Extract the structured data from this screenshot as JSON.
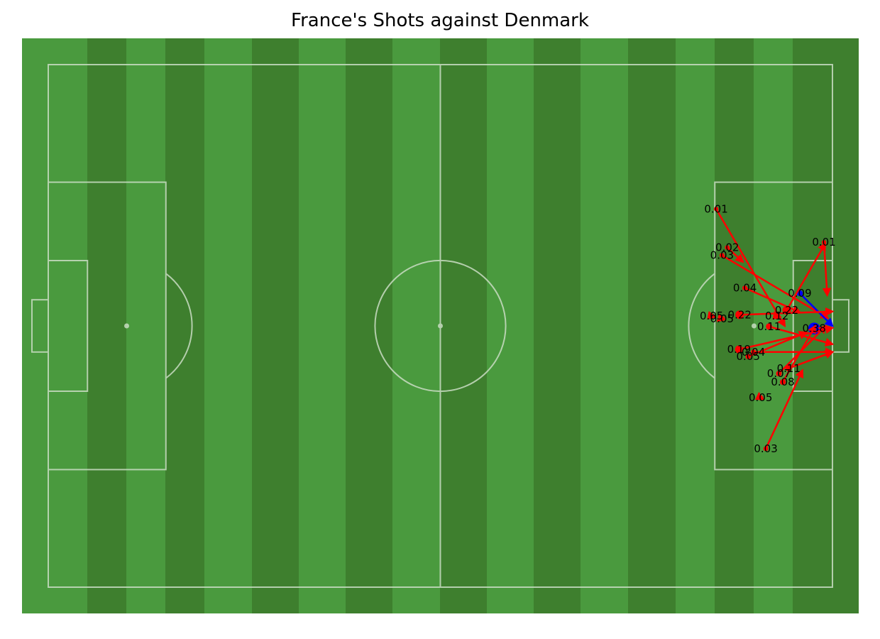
{
  "chart_data": {
    "type": "scatter",
    "title": "France's Shots against Denmark",
    "pitch": {
      "length": 120,
      "width": 80,
      "orientation": "horizontal",
      "attacking_direction": "right"
    },
    "colors": {
      "goal": "#0000ff",
      "non_goal": "#ff0000",
      "pitch_light": "#4a9a3e",
      "pitch_dark": "#3e7f2e",
      "lines": "#c9dcc3"
    },
    "shots": [
      {
        "x": 102.2,
        "y": 22.1,
        "end_x": 112.7,
        "end_y": 40.0,
        "xg": "0.01",
        "goal": false
      },
      {
        "x": 103.9,
        "y": 28.0,
        "end_x": 106.3,
        "end_y": 30.2,
        "xg": "0.02",
        "goal": false
      },
      {
        "x": 103.1,
        "y": 29.2,
        "end_x": 119.3,
        "end_y": 38.8,
        "xg": "0.03",
        "goal": false
      },
      {
        "x": 106.6,
        "y": 34.2,
        "end_x": 115.0,
        "end_y": 37.9,
        "xg": "0.04",
        "goal": false
      },
      {
        "x": 115.0,
        "y": 35.0,
        "end_x": 120.0,
        "end_y": 40.0,
        "xg": "0.09",
        "goal": true
      },
      {
        "x": 117.2,
        "y": 40.4,
        "end_x": 117.6,
        "end_y": 40.5,
        "xg": "0.38",
        "goal": true
      },
      {
        "x": 118.7,
        "y": 27.2,
        "end_x": 119.2,
        "end_y": 35.3,
        "xg": "0.01",
        "goal": false
      },
      {
        "x": 101.5,
        "y": 38.5,
        "end_x": 102.0,
        "end_y": 38.6,
        "xg": "0.05",
        "goal": false
      },
      {
        "x": 103.1,
        "y": 38.9,
        "end_x": 103.5,
        "end_y": 39.0,
        "xg": "0.05",
        "goal": false
      },
      {
        "x": 105.8,
        "y": 38.3,
        "end_x": 120.0,
        "end_y": 37.8,
        "xg": "0.22",
        "goal": false
      },
      {
        "x": 113.0,
        "y": 37.6,
        "end_x": 118.9,
        "end_y": 27.4,
        "xg": "0.22",
        "goal": false
      },
      {
        "x": 111.5,
        "y": 38.5,
        "end_x": 112.0,
        "end_y": 38.6,
        "xg": "0.12",
        "goal": false
      },
      {
        "x": 110.3,
        "y": 40.1,
        "end_x": 120.0,
        "end_y": 42.8,
        "xg": "0.11",
        "goal": false
      },
      {
        "x": 105.7,
        "y": 43.6,
        "end_x": 120.0,
        "end_y": 40.3,
        "xg": "0.19",
        "goal": false
      },
      {
        "x": 107.9,
        "y": 44.0,
        "end_x": 120.0,
        "end_y": 44.0,
        "xg": "0.04",
        "goal": false
      },
      {
        "x": 107.1,
        "y": 44.7,
        "end_x": 116.0,
        "end_y": 41.0,
        "xg": "0.05",
        "goal": false
      },
      {
        "x": 113.3,
        "y": 46.5,
        "end_x": 120.0,
        "end_y": 44.0,
        "xg": "0.11",
        "goal": false
      },
      {
        "x": 111.8,
        "y": 47.3,
        "end_x": 119.0,
        "end_y": 40.0,
        "xg": "0.07",
        "goal": false
      },
      {
        "x": 112.4,
        "y": 48.6,
        "end_x": 117.4,
        "end_y": 40.0,
        "xg": "0.08",
        "goal": false
      },
      {
        "x": 109.0,
        "y": 51.0,
        "end_x": 109.4,
        "end_y": 51.2,
        "xg": "0.05",
        "goal": false
      },
      {
        "x": 109.8,
        "y": 58.8,
        "end_x": 115.4,
        "end_y": 46.8,
        "xg": "0.03",
        "goal": false
      }
    ]
  }
}
